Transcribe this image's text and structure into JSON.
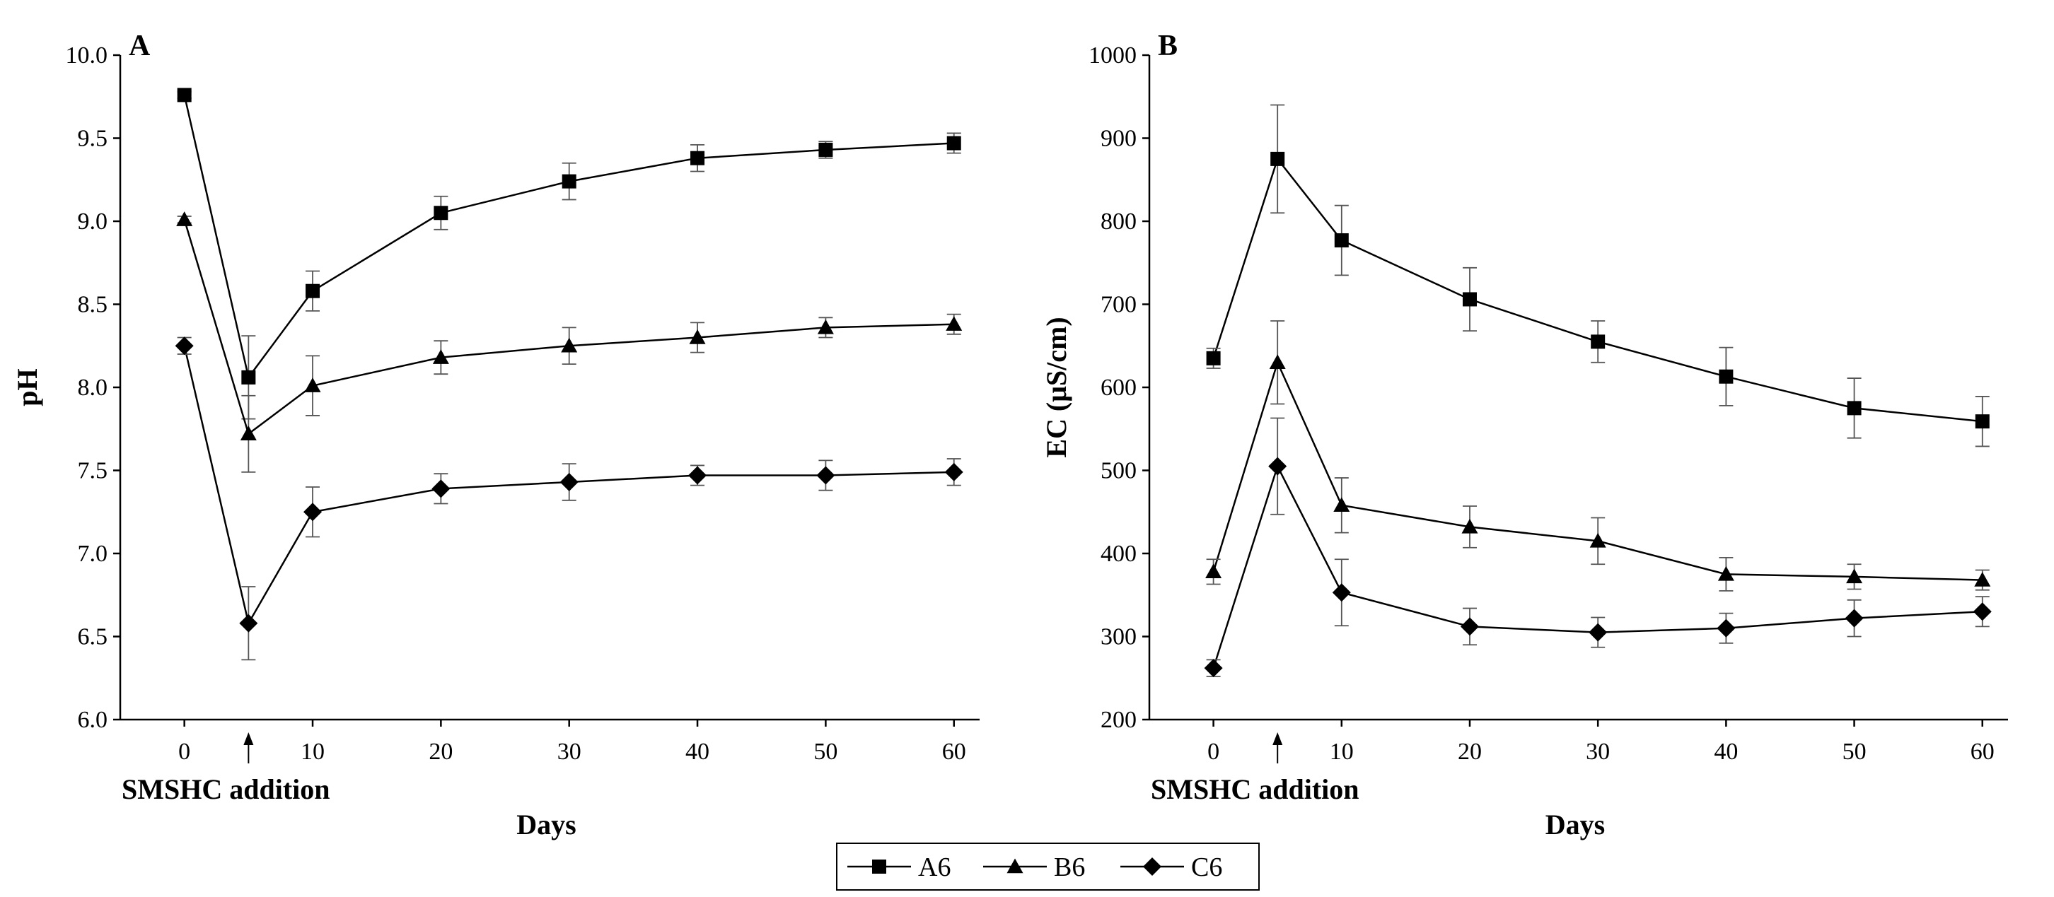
{
  "chart_data": [
    {
      "panel": "A",
      "type": "line",
      "ylabel": "pH",
      "xlabel": "Days",
      "annotation": "SMSHC addition",
      "annotation_x": 5,
      "x": [
        0,
        5,
        10,
        20,
        30,
        40,
        50,
        60
      ],
      "xticks": [
        0,
        10,
        20,
        30,
        40,
        50,
        60
      ],
      "xlim": [
        -5,
        62
      ],
      "ylim": [
        6.0,
        10.0
      ],
      "yticks": [
        "6.0",
        "6.5",
        "7.0",
        "7.5",
        "8.0",
        "8.5",
        "9.0",
        "9.5",
        "10.0"
      ],
      "grid": false,
      "series": [
        {
          "name": "A6",
          "marker": "square",
          "values": [
            9.76,
            8.06,
            8.58,
            9.05,
            9.24,
            9.38,
            9.43,
            9.47
          ],
          "errors": [
            0.02,
            0.25,
            0.12,
            0.1,
            0.11,
            0.08,
            0.05,
            0.06
          ]
        },
        {
          "name": "B6",
          "marker": "triangle",
          "values": [
            9.01,
            7.72,
            8.01,
            8.18,
            8.25,
            8.3,
            8.36,
            8.38
          ],
          "errors": [
            0.02,
            0.23,
            0.18,
            0.1,
            0.11,
            0.09,
            0.06,
            0.06
          ]
        },
        {
          "name": "C6",
          "marker": "diamond",
          "values": [
            8.25,
            6.58,
            7.25,
            7.39,
            7.43,
            7.47,
            7.47,
            7.49
          ],
          "errors": [
            0.05,
            0.22,
            0.15,
            0.09,
            0.11,
            0.06,
            0.09,
            0.08
          ]
        }
      ]
    },
    {
      "panel": "B",
      "type": "line",
      "ylabel": "EC (μS/cm)",
      "xlabel": "Days",
      "annotation": "SMSHC addition",
      "annotation_x": 5,
      "x": [
        0,
        5,
        10,
        20,
        30,
        40,
        50,
        60
      ],
      "xticks": [
        0,
        10,
        20,
        30,
        40,
        50,
        60
      ],
      "xlim": [
        -5,
        62
      ],
      "ylim": [
        200,
        1000
      ],
      "yticks": [
        "200",
        "300",
        "400",
        "500",
        "600",
        "700",
        "800",
        "900",
        "1000"
      ],
      "grid": false,
      "series": [
        {
          "name": "A6",
          "marker": "square",
          "values": [
            635,
            875,
            777,
            706,
            655,
            613,
            575,
            559
          ],
          "errors": [
            12,
            65,
            42,
            38,
            25,
            35,
            36,
            30
          ]
        },
        {
          "name": "B6",
          "marker": "triangle",
          "values": [
            378,
            630,
            458,
            432,
            415,
            375,
            372,
            368
          ],
          "errors": [
            15,
            50,
            33,
            25,
            28,
            20,
            15,
            12
          ]
        },
        {
          "name": "C6",
          "marker": "diamond",
          "values": [
            262,
            505,
            353,
            312,
            305,
            310,
            322,
            330
          ],
          "errors": [
            10,
            58,
            40,
            22,
            18,
            18,
            22,
            18
          ]
        }
      ]
    }
  ],
  "legend": {
    "position": "bottom-center",
    "items": [
      {
        "label": "A6",
        "marker": "square"
      },
      {
        "label": "B6",
        "marker": "triangle"
      },
      {
        "label": "C6",
        "marker": "diamond"
      }
    ]
  },
  "colors": {
    "line": "#000000",
    "errorbar": "#555555",
    "background": "#ffffff"
  }
}
